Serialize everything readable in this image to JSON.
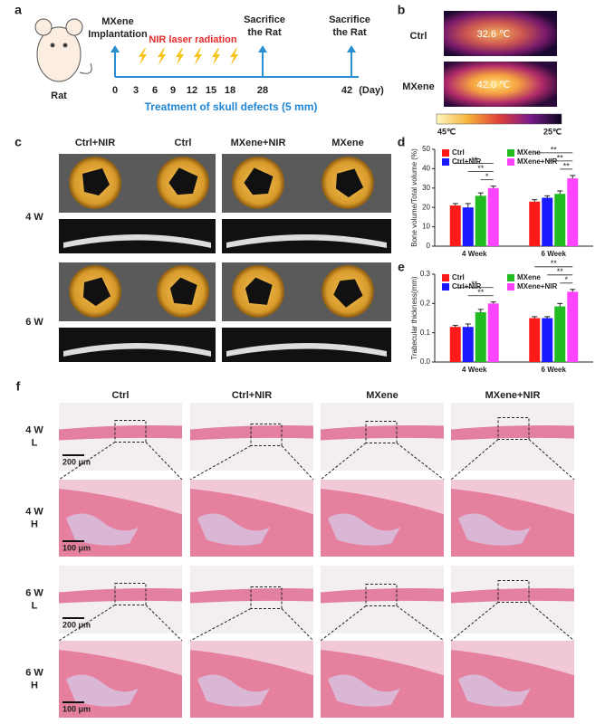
{
  "panel_labels": [
    "a",
    "b",
    "c",
    "d",
    "e",
    "f"
  ],
  "timeline": {
    "rat_label": "Rat",
    "implantation": [
      "MXene",
      "Implantation"
    ],
    "nir": "NIR laser radiation",
    "sacrifice": [
      [
        "Sacrifice",
        "the Rat"
      ],
      [
        "Sacrifice",
        "the Rat"
      ]
    ],
    "days": [
      0,
      3,
      6,
      9,
      12,
      15,
      18,
      28,
      42
    ],
    "day_unit": "(Day)",
    "treatment": "Treatment of skull defects (5 mm)"
  },
  "thermal": {
    "rows": [
      {
        "label": "Ctrl",
        "temp": "32.6 ℃"
      },
      {
        "label": "MXene",
        "temp": "42.0 ℃"
      }
    ],
    "scale": [
      "45℃",
      "25℃"
    ]
  },
  "ct": {
    "columns": [
      "Ctrl+NIR",
      "Ctrl",
      "MXene+NIR",
      "MXene"
    ],
    "rows": [
      "4 W",
      "6 W"
    ]
  },
  "chart_data": [
    {
      "type": "bar",
      "y_label": "Bone volume/Total volume (%)",
      "categories": [
        "4 Week",
        "6 Week"
      ],
      "series": [
        {
          "name": "Ctrl",
          "color": "#ff1a1a",
          "values": [
            21,
            23
          ],
          "errors": [
            1,
            1
          ]
        },
        {
          "name": "Ctrl+NIR",
          "color": "#1a1aff",
          "values": [
            20,
            25
          ],
          "errors": [
            2,
            1
          ]
        },
        {
          "name": "MXene",
          "color": "#22bb22",
          "values": [
            26,
            27
          ],
          "errors": [
            1.5,
            1.5
          ]
        },
        {
          "name": "MXene+NIR",
          "color": "#ff44ff",
          "values": [
            30,
            35
          ],
          "errors": [
            1,
            1.5
          ]
        }
      ],
      "ylim": [
        0,
        50
      ],
      "yticks": [
        0,
        10,
        20,
        30,
        40,
        50
      ],
      "significance": [
        [
          "**",
          "**",
          "*"
        ],
        [
          "**",
          "**",
          "**"
        ]
      ]
    },
    {
      "type": "bar",
      "y_label": "Trabecular thickness(mm)",
      "categories": [
        "4 Week",
        "6 Week"
      ],
      "series": [
        {
          "name": "Ctrl",
          "color": "#ff1a1a",
          "values": [
            0.12,
            0.15
          ],
          "errors": [
            0.005,
            0.005
          ]
        },
        {
          "name": "Ctrl+NIR",
          "color": "#1a1aff",
          "values": [
            0.12,
            0.15
          ],
          "errors": [
            0.01,
            0.005
          ]
        },
        {
          "name": "MXene",
          "color": "#22bb22",
          "values": [
            0.17,
            0.19
          ],
          "errors": [
            0.01,
            0.01
          ]
        },
        {
          "name": "MXene+NIR",
          "color": "#ff44ff",
          "values": [
            0.2,
            0.24
          ],
          "errors": [
            0.005,
            0.008
          ]
        }
      ],
      "ylim": [
        0,
        0.3
      ],
      "yticks": [
        {
          "value": 0,
          "label": "0.0"
        },
        0.1,
        0.2,
        0.3
      ],
      "significance": [
        [
          "**",
          "**"
        ],
        [
          "**",
          "**",
          "*"
        ]
      ]
    }
  ],
  "histology": {
    "columns": [
      "Ctrl",
      "Ctrl+NIR",
      "MXene",
      "MXene+NIR"
    ],
    "rows": [
      [
        "4 W",
        "L"
      ],
      [
        "4 W",
        "H"
      ],
      [
        "6 W",
        "L"
      ],
      [
        "6 W",
        "H"
      ]
    ],
    "scale_bars": [
      "200 μm",
      "100 μm",
      "200 μm",
      "100 μm"
    ]
  }
}
